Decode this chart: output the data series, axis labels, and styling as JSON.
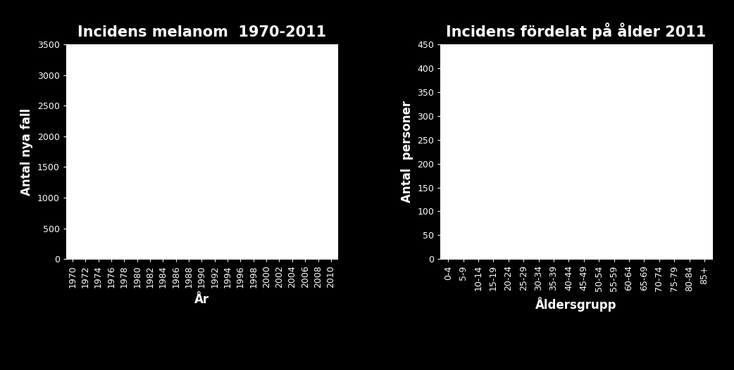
{
  "fig_background": "#000000",
  "plot_background": "#ffffff",
  "text_color": "#ffffff",
  "left_title": "Incidens melanom  1970-2011",
  "right_title": "Incidens fördelat på ålder 2011",
  "left_xlabel": "År",
  "left_ylabel": "Antal nya fall",
  "right_xlabel": "Åldersgrupp",
  "right_ylabel": "Antal  personer",
  "left_yticks": [
    0,
    500,
    1000,
    1500,
    2000,
    2500,
    3000,
    3500
  ],
  "left_ylim": [
    0,
    3500
  ],
  "left_xticks": [
    1970,
    1972,
    1974,
    1976,
    1978,
    1980,
    1982,
    1984,
    1986,
    1988,
    1990,
    1992,
    1994,
    1996,
    1998,
    2000,
    2002,
    2004,
    2006,
    2008,
    2010
  ],
  "left_xlim": [
    1969,
    2011
  ],
  "right_yticks": [
    0,
    50,
    100,
    150,
    200,
    250,
    300,
    350,
    400,
    450
  ],
  "right_ylim": [
    0,
    450
  ],
  "right_xticks": [
    "0-4",
    "5-9",
    "10-14",
    "15-19",
    "20-24",
    "25-29",
    "30-34",
    "35-39",
    "40-44",
    "45-49",
    "50-54",
    "55-59",
    "60-64",
    "65-69",
    "70-74",
    "75-79",
    "80-84",
    "85+"
  ],
  "title_fontsize": 15,
  "label_fontsize": 12,
  "tick_fontsize": 9,
  "title_fontweight": "bold",
  "label_fontweight": "bold"
}
